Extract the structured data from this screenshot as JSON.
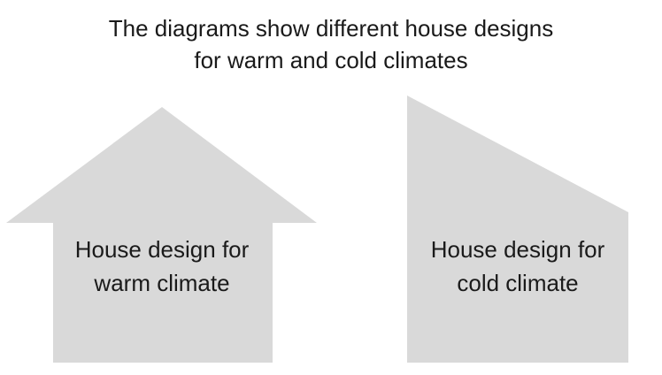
{
  "title": {
    "line1": "The diagrams show different house designs",
    "line2": "for warm and cold climates"
  },
  "houses": [
    {
      "label_line1": "House design for",
      "label_line2": "warm climate"
    },
    {
      "label_line1": "House design for",
      "label_line2": "cold climate"
    }
  ],
  "colors": {
    "shape_fill": "#d9d9d9",
    "text": "#1a1a1a",
    "background": "#ffffff"
  }
}
